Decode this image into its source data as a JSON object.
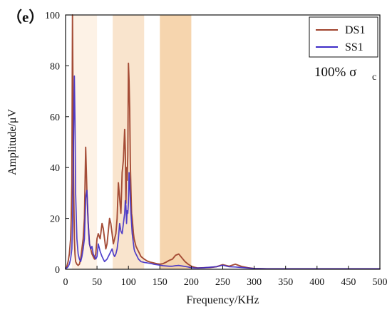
{
  "chart_data": {
    "type": "line",
    "panel_label": "（e）",
    "xlabel": "Frequency/KHz",
    "ylabel": "Amplitude/μV",
    "xlim": [
      0,
      500
    ],
    "ylim": [
      0,
      100
    ],
    "xticks": [
      0,
      50,
      100,
      150,
      200,
      250,
      300,
      350,
      400,
      450,
      500
    ],
    "yticks": [
      0,
      20,
      40,
      60,
      80,
      100
    ],
    "grid": false,
    "legend_position": "top-right",
    "annotation": {
      "main": "100% σ",
      "sub": "c"
    },
    "bands": [
      {
        "x_start": 10,
        "x_end": 50,
        "color": "#fbe7d1",
        "opacity": 0.55
      },
      {
        "x_start": 75,
        "x_end": 125,
        "color": "#f7d8b8",
        "opacity": 0.7
      },
      {
        "x_start": 150,
        "x_end": 200,
        "color": "#f3c58f",
        "opacity": 0.72
      }
    ],
    "series": [
      {
        "name": "DS1",
        "color": "#a0432d",
        "x": [
          0,
          2,
          4,
          6,
          8,
          9,
          10,
          11,
          12,
          13,
          14,
          15,
          16,
          18,
          20,
          22,
          24,
          26,
          28,
          30,
          32,
          34,
          36,
          38,
          40,
          42,
          44,
          46,
          48,
          50,
          52,
          55,
          58,
          60,
          62,
          64,
          66,
          68,
          70,
          72,
          74,
          76,
          78,
          80,
          82,
          84,
          86,
          88,
          90,
          92,
          94,
          95,
          96,
          97,
          98,
          99,
          100,
          101,
          102,
          103,
          104,
          105,
          106,
          107,
          108,
          109,
          110,
          112,
          114,
          116,
          118,
          120,
          125,
          130,
          135,
          140,
          145,
          150,
          155,
          160,
          165,
          170,
          175,
          180,
          185,
          190,
          195,
          200,
          205,
          210,
          220,
          230,
          240,
          250,
          260,
          270,
          280,
          290,
          300,
          320,
          340,
          360,
          380,
          400,
          420,
          440,
          460,
          480,
          500
        ],
        "y": [
          0.5,
          1,
          3,
          6,
          12,
          20,
          34,
          100,
          62,
          30,
          12,
          6,
          3,
          2,
          1.5,
          2,
          4,
          8,
          12,
          20,
          48,
          30,
          18,
          10,
          8,
          6,
          5,
          4,
          6,
          12,
          14,
          12,
          18,
          16,
          12,
          8,
          10,
          15,
          20,
          18,
          14,
          10,
          12,
          14,
          20,
          34,
          28,
          22,
          38,
          43,
          55,
          47,
          26,
          40,
          35,
          45,
          81,
          74,
          63,
          42,
          31,
          22,
          20,
          17,
          14,
          12,
          11,
          9,
          8,
          7,
          6,
          5,
          4,
          3.2,
          2.8,
          2.5,
          2.2,
          2,
          2.2,
          2.8,
          3.5,
          4,
          5.5,
          6,
          4.5,
          3,
          2,
          1.2,
          0.8,
          0.5,
          0.6,
          0.7,
          1,
          1.8,
          1.2,
          2,
          1.1,
          0.6,
          0.3,
          0.2,
          0.2,
          0.2,
          0.2,
          0.2,
          0.2,
          0.2,
          0.2,
          0.2,
          0.2
        ]
      },
      {
        "name": "SS1",
        "color": "#3d2bc7",
        "x": [
          0,
          2,
          4,
          6,
          8,
          10,
          11,
          12,
          13,
          14,
          15,
          16,
          18,
          20,
          22,
          24,
          26,
          28,
          30,
          32,
          34,
          36,
          38,
          40,
          42,
          44,
          46,
          48,
          50,
          52,
          55,
          58,
          60,
          62,
          64,
          66,
          68,
          70,
          72,
          74,
          76,
          78,
          80,
          82,
          84,
          86,
          88,
          90,
          92,
          94,
          95,
          96,
          97,
          98,
          99,
          100,
          101,
          102,
          103,
          104,
          105,
          106,
          107,
          108,
          109,
          110,
          112,
          114,
          116,
          118,
          120,
          125,
          130,
          135,
          140,
          145,
          150,
          155,
          160,
          165,
          170,
          175,
          180,
          185,
          190,
          195,
          200,
          205,
          210,
          220,
          230,
          240,
          250,
          260,
          270,
          280,
          290,
          300,
          320,
          340,
          360,
          380,
          400,
          420,
          440,
          460,
          480,
          500
        ],
        "y": [
          0.3,
          0.5,
          1,
          2,
          4,
          8,
          18,
          35,
          59,
          76,
          58,
          30,
          12,
          6,
          4,
          3,
          5,
          8,
          12,
          28,
          31,
          18,
          10,
          8,
          9,
          6,
          5,
          4,
          5,
          10,
          7,
          5,
          4,
          3,
          3.5,
          4,
          5,
          6,
          7,
          8,
          6,
          5,
          6,
          8,
          12,
          18,
          15,
          14,
          18,
          22,
          27,
          25,
          18,
          23,
          22,
          26,
          38,
          34,
          28,
          22,
          18,
          14,
          12,
          10,
          8,
          7,
          6,
          5,
          4,
          3.5,
          3,
          2.7,
          2.5,
          2.3,
          2,
          1.8,
          1.6,
          1.4,
          1.3,
          1.2,
          1.2,
          1.4,
          1.5,
          1.3,
          1.1,
          0.9,
          0.6,
          0.5,
          0.5,
          0.6,
          0.8,
          1,
          1.6,
          1,
          0.9,
          0.7,
          0.5,
          0.3,
          0.2,
          0.2,
          0.2,
          0.2,
          0.2,
          0.2,
          0.2,
          0.2,
          0.2,
          0.2
        ]
      }
    ]
  }
}
